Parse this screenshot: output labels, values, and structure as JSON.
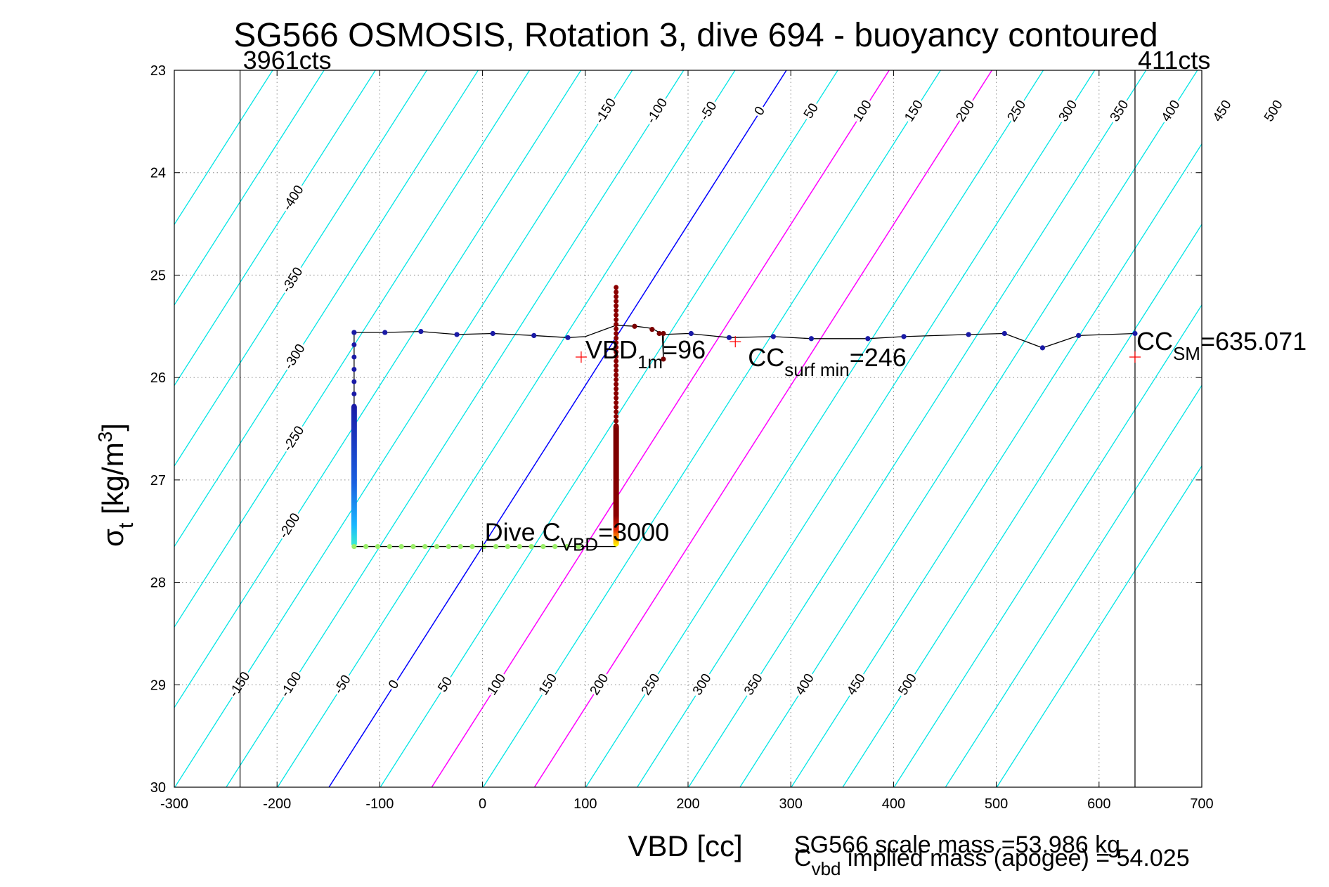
{
  "chart_data": {
    "type": "line",
    "title": "SG566 OSMOSIS, Rotation 3, dive 694 - buoyancy contoured",
    "xlabel": "VBD [cc]",
    "ylabel_main": "σ",
    "ylabel_sub": "t",
    "ylabel_rest": " [kg/m",
    "ylabel_sup": "3",
    "ylabel_end": "]",
    "xlim": [
      -300,
      700
    ],
    "ylim": [
      23,
      30
    ],
    "y_reversed": true,
    "grid": "dotted",
    "xticks": [
      -300,
      -200,
      -100,
      0,
      100,
      200,
      300,
      400,
      500,
      600,
      700
    ],
    "yticks": [
      23,
      24,
      25,
      26,
      27,
      28,
      29,
      30
    ],
    "contours": {
      "levels": [
        -500,
        -450,
        -400,
        -350,
        -300,
        -250,
        -200,
        -150,
        -100,
        -50,
        0,
        50,
        100,
        150,
        200,
        250,
        300,
        350,
        400,
        450,
        500,
        550,
        600,
        650
      ],
      "slope_cc_per_sigma": 63.6,
      "reference_sigma": 27.65,
      "default_color": "#00e5e5",
      "zero_color": "#0000ff",
      "highlight_levels": [
        100,
        200
      ],
      "highlight_color": "#ff00ff",
      "top_label_sigma": 23.4,
      "top_labels": [
        "-150",
        "-100",
        "-50",
        "0",
        "50",
        "100",
        "150",
        "200",
        "250",
        "300",
        "350",
        "400",
        "450",
        "500"
      ],
      "bottom_label_sigma": 29.0,
      "bottom_labels": [
        "-150",
        "-100",
        "-50",
        "0",
        "50",
        "100",
        "150",
        "200",
        "250",
        "300",
        "350",
        "400",
        "450",
        "500"
      ],
      "left_labels": [
        {
          "text": "-400",
          "level": -400,
          "sigma": 24.25
        },
        {
          "text": "-350",
          "level": -350,
          "sigma": 25.05
        },
        {
          "text": "-300",
          "level": -300,
          "sigma": 25.8
        },
        {
          "text": "-250",
          "level": -250,
          "sigma": 26.6
        },
        {
          "text": "-200",
          "level": -200,
          "sigma": 27.45
        }
      ]
    },
    "vertical_lines": [
      {
        "x": -236,
        "label": "3961cts"
      },
      {
        "x": 635,
        "label": "411cts"
      }
    ],
    "dive_track": {
      "color": "#000000",
      "points": [
        [
          -125,
          25.56
        ],
        [
          -95,
          25.56
        ],
        [
          -60,
          25.55
        ],
        [
          -25,
          25.58
        ],
        [
          10,
          25.57
        ],
        [
          50,
          25.59
        ],
        [
          83,
          25.61
        ],
        [
          100,
          25.6
        ],
        [
          130,
          25.49
        ],
        [
          150,
          25.5
        ],
        [
          165,
          25.52
        ],
        [
          172,
          25.56
        ],
        [
          175,
          25.58
        ],
        [
          176,
          25.82
        ],
        [
          176,
          25.58
        ],
        [
          200,
          25.57
        ],
        [
          240,
          25.61
        ],
        [
          283,
          25.6
        ],
        [
          320,
          25.62
        ],
        [
          375,
          25.62
        ],
        [
          410,
          25.6
        ],
        [
          473,
          25.58
        ],
        [
          508,
          25.57
        ],
        [
          545,
          25.71
        ],
        [
          580,
          25.59
        ],
        [
          635,
          25.57
        ]
      ],
      "dots": [
        [
          -125,
          25.56,
          "#1a1aa6"
        ],
        [
          -95,
          25.56,
          "#1a1aa6"
        ],
        [
          -60,
          25.55,
          "#1a1aa6"
        ],
        [
          -25,
          25.58,
          "#1a1aa6"
        ],
        [
          10,
          25.57,
          "#1a1aa6"
        ],
        [
          50,
          25.59,
          "#1a1aa6"
        ],
        [
          83,
          25.61,
          "#1a1aa6"
        ],
        [
          203,
          25.57,
          "#1a1aa6"
        ],
        [
          240,
          25.61,
          "#1a1aa6"
        ],
        [
          283,
          25.6,
          "#1a1aa6"
        ],
        [
          320,
          25.62,
          "#1a1aa6"
        ],
        [
          375,
          25.62,
          "#1a1aa6"
        ],
        [
          410,
          25.6,
          "#1a1aa6"
        ],
        [
          473,
          25.58,
          "#1a1aa6"
        ],
        [
          508,
          25.57,
          "#1a1aa6"
        ],
        [
          545,
          25.71,
          "#1a1aa6"
        ],
        [
          580,
          25.59,
          "#1a1aa6"
        ],
        [
          635,
          25.57,
          "#1a1aa6"
        ],
        [
          148,
          25.5,
          "#7a0000"
        ],
        [
          165,
          25.53,
          "#7a0000"
        ],
        [
          172,
          25.57,
          "#7a0000"
        ],
        [
          176,
          25.57,
          "#7a0000"
        ],
        [
          176,
          25.82,
          "#7a0000"
        ]
      ],
      "descent": {
        "x": -125,
        "sigma_top": 25.56,
        "sigma_bottom": 27.65
      },
      "bottom": {
        "x_start": -125,
        "x_end": 130,
        "sigma": 27.65
      },
      "ascent": {
        "x": 130,
        "sigma_top": 25.12,
        "sigma_bottom": 27.65
      }
    },
    "markers": [
      {
        "x": 96,
        "sigma": 25.8,
        "label": "VBD",
        "sub": "1m",
        "rest": "=96",
        "color": "#ff0000"
      },
      {
        "x": 246,
        "sigma": 25.65,
        "label": "CC",
        "sub": "surf min",
        "rest": "=246",
        "color": "#ff0000"
      },
      {
        "x": 635,
        "sigma": 25.8,
        "label": "CC",
        "sub": "SM",
        "rest": "=635.071",
        "color": "#ff0000"
      },
      {
        "x": 0,
        "sigma": 27.65,
        "label": "Dive C",
        "sub": "VBD",
        "rest": "=3000",
        "color": "#000000"
      }
    ],
    "footer": {
      "line1": "SG566 scale mass =53.986 kg",
      "line2_main": "C",
      "line2_sub": "vbd",
      "line2_rest": " implied mass (apogee) = 54.025"
    }
  }
}
